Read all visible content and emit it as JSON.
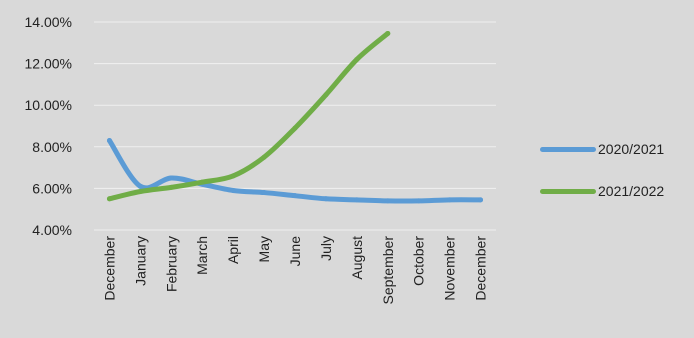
{
  "chart_data": {
    "type": "line",
    "categories": [
      "December",
      "January",
      "February",
      "March",
      "April",
      "May",
      "June",
      "July",
      "August",
      "September",
      "October",
      "November",
      "December"
    ],
    "ylim": [
      4.0,
      14.0
    ],
    "yticks": [
      "4.00%",
      "6.00%",
      "8.00%",
      "10.00%",
      "12.00%",
      "14.00%"
    ],
    "ytick_values": [
      4,
      6,
      8,
      10,
      12,
      14
    ],
    "grid": true,
    "legend_position": "right",
    "series": [
      {
        "name": "2020/2021",
        "color": "#5b9bd5",
        "values": [
          8.3,
          6.1,
          6.5,
          6.2,
          5.9,
          5.8,
          5.65,
          5.5,
          5.45,
          5.4,
          5.4,
          5.45,
          5.45
        ]
      },
      {
        "name": "2021/2022",
        "color": "#70ad47",
        "values": [
          5.5,
          5.85,
          6.05,
          6.3,
          6.6,
          7.5,
          8.9,
          10.5,
          12.2,
          13.45,
          null,
          null,
          null
        ]
      }
    ]
  }
}
